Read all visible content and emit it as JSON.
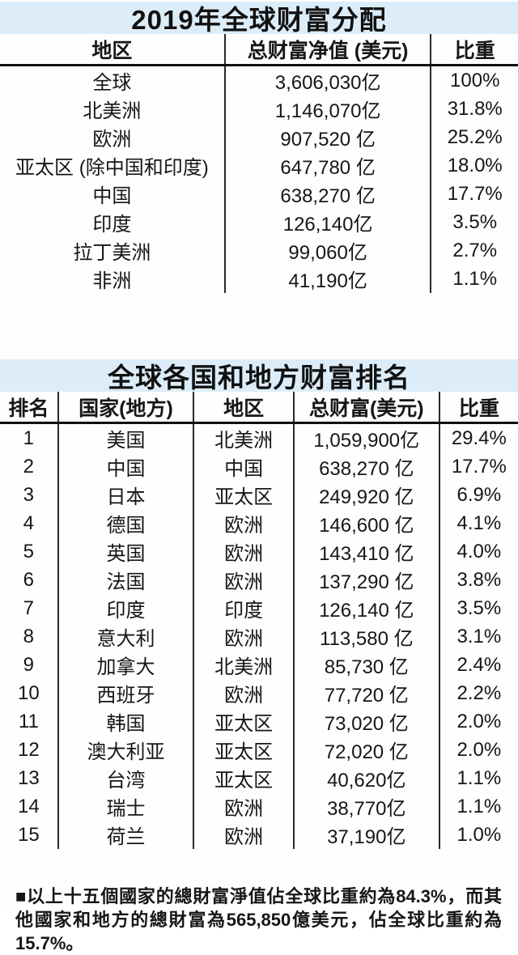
{
  "accent_color": "#dcedf9",
  "text_color": "#161616",
  "table1": {
    "title": "2019年全球财富分配",
    "columns": [
      "地区",
      "总财富净值 (美元)",
      "比重"
    ],
    "rows": [
      [
        "全球",
        "3,606,030亿",
        "100%"
      ],
      [
        "北美洲",
        "1,146,070亿",
        "31.8%"
      ],
      [
        "欧洲",
        "907,520 亿",
        "25.2%"
      ],
      [
        "亚太区 (除中国和印度)",
        "647,780 亿",
        "18.0%"
      ],
      [
        "中国",
        "638,270 亿",
        "17.7%"
      ],
      [
        "印度",
        "126,140亿",
        "3.5%"
      ],
      [
        "拉丁美洲",
        "99,060亿",
        "2.7%"
      ],
      [
        "非洲",
        "41,190亿",
        "1.1%"
      ]
    ]
  },
  "table2": {
    "title": "全球各国和地方财富排名",
    "columns": [
      "排名",
      "国家(地方)",
      "地区",
      "总财富(美元)",
      "比重"
    ],
    "rows": [
      [
        "1",
        "美国",
        "北美洲",
        "1,059,900亿",
        "29.4%"
      ],
      [
        "2",
        "中国",
        "中国",
        "638,270 亿",
        "17.7%"
      ],
      [
        "3",
        "日本",
        "亚太区",
        "249,920 亿",
        "6.9%"
      ],
      [
        "4",
        "德国",
        "欧洲",
        "146,600 亿",
        "4.1%"
      ],
      [
        "5",
        "英国",
        "欧洲",
        "143,410 亿",
        "4.0%"
      ],
      [
        "6",
        "法国",
        "欧洲",
        "137,290 亿",
        "3.8%"
      ],
      [
        "7",
        "印度",
        "印度",
        "126,140 亿",
        "3.5%"
      ],
      [
        "8",
        "意大利",
        "欧洲",
        "113,580 亿",
        "3.1%"
      ],
      [
        "9",
        "加拿大",
        "北美洲",
        "85,730 亿",
        "2.4%"
      ],
      [
        "10",
        "西班牙",
        "欧洲",
        "77,720 亿",
        "2.2%"
      ],
      [
        "11",
        "韩国",
        "亚太区",
        "73,020 亿",
        "2.0%"
      ],
      [
        "12",
        "澳大利亚",
        "亚太区",
        "72,020 亿",
        "2.0%"
      ],
      [
        "13",
        "台湾",
        "亚太区",
        "40,620亿",
        "1.1%"
      ],
      [
        "14",
        "瑞士",
        "欧洲",
        "38,770亿",
        "1.1%"
      ],
      [
        "15",
        "荷兰",
        "欧洲",
        "37,190亿",
        "1.0%"
      ]
    ]
  },
  "footnote": "■以上十五個國家的總財富淨值佔全球比重約為84.3%，而其他國家和地方的總財富為565,850億美元，佔全球比重約為15.7%。",
  "chart_data": [
    {
      "type": "table",
      "title": "2019年全球财富分配",
      "columns": [
        "地区",
        "总财富净值 (美元)",
        "比重"
      ],
      "unit": "亿美元 (hundred-million USD)",
      "regions": [
        "全球",
        "北美洲",
        "欧洲",
        "亚太区 (除中国和印度)",
        "中国",
        "印度",
        "拉丁美洲",
        "非洲"
      ],
      "total_net_wealth_yi_usd": [
        3606030,
        1146070,
        907520,
        647780,
        638270,
        126140,
        99060,
        41190
      ],
      "share_pct": [
        100,
        31.8,
        25.2,
        18.0,
        17.7,
        3.5,
        2.7,
        1.1
      ]
    },
    {
      "type": "table",
      "title": "全球各国和地方财富排名",
      "columns": [
        "排名",
        "国家(地方)",
        "地区",
        "总财富(美元)",
        "比重"
      ],
      "unit": "亿美元 (hundred-million USD)",
      "ranks": [
        1,
        2,
        3,
        4,
        5,
        6,
        7,
        8,
        9,
        10,
        11,
        12,
        13,
        14,
        15
      ],
      "countries": [
        "美国",
        "中国",
        "日本",
        "德国",
        "英国",
        "法国",
        "印度",
        "意大利",
        "加拿大",
        "西班牙",
        "韩国",
        "澳大利亚",
        "台湾",
        "瑞士",
        "荷兰"
      ],
      "regions": [
        "北美洲",
        "中国",
        "亚太区",
        "欧洲",
        "欧洲",
        "欧洲",
        "印度",
        "欧洲",
        "北美洲",
        "欧洲",
        "亚太区",
        "亚太区",
        "亚太区",
        "欧洲",
        "欧洲"
      ],
      "total_wealth_yi_usd": [
        1059900,
        638270,
        249920,
        146600,
        143410,
        137290,
        126140,
        113580,
        85730,
        77720,
        73020,
        72020,
        40620,
        38770,
        37190
      ],
      "share_pct": [
        29.4,
        17.7,
        6.9,
        4.1,
        4.0,
        3.8,
        3.5,
        3.1,
        2.4,
        2.2,
        2.0,
        2.0,
        1.1,
        1.1,
        1.0
      ],
      "top15_share_pct": 84.3,
      "others_total_wealth_yi_usd": 565850,
      "others_share_pct": 15.7
    }
  ]
}
